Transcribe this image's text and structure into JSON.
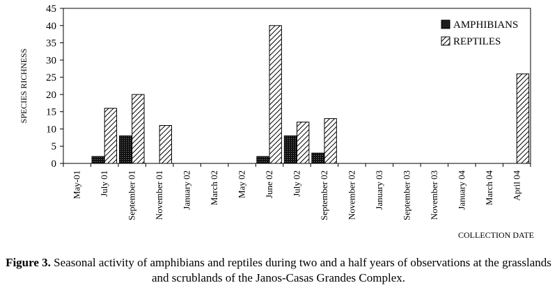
{
  "chart_data": {
    "type": "bar",
    "categories": [
      "May-01",
      "July 01",
      "September 01",
      "November 01",
      "January 02",
      "March 02",
      "May 02",
      "June 02",
      "July 02",
      "September 02",
      "November 02",
      "January 03",
      "September 03",
      "November 03",
      "January 04",
      "March 04",
      "April 04"
    ],
    "series": [
      {
        "name": "AMPHIBIANS",
        "values": [
          0,
          2,
          8,
          0,
          0,
          0,
          0,
          2,
          8,
          3,
          0,
          0,
          0,
          0,
          0,
          0,
          0
        ],
        "pattern": "dots-dark"
      },
      {
        "name": "REPTILES",
        "values": [
          0,
          16,
          20,
          11,
          0,
          0,
          0,
          40,
          12,
          13,
          0,
          0,
          0,
          0,
          0,
          0,
          26
        ],
        "pattern": "diagonal-hatch"
      }
    ],
    "ylabel": "SPECIES RICHNESS",
    "xlabel": "COLLECTION DATE",
    "ylim": [
      0,
      45
    ],
    "yticks": [
      0,
      5,
      10,
      15,
      20,
      25,
      30,
      35,
      40,
      45
    ],
    "legend_position": "top-right",
    "grid": false
  },
  "caption": {
    "label": "Figure 3.",
    "text": " Seasonal activity of amphibians and reptiles during two and a half years of observations at the grasslands and scrublands of the Janos-Casas Grandes Complex."
  },
  "colors": {
    "axis": "#000000",
    "bar_stroke": "#000000",
    "background": "#ffffff"
  }
}
